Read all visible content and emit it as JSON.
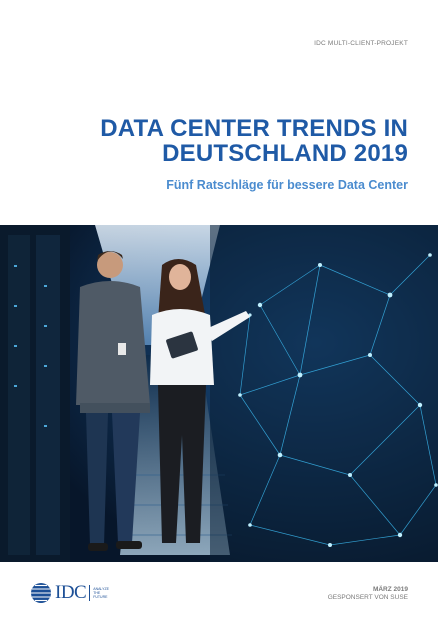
{
  "header": {
    "project_label": "IDC MULTI-CLIENT-PROJEKT"
  },
  "cover": {
    "title_line1": "DATA CENTER TRENDS IN",
    "title_line2": "DEUTSCHLAND 2019",
    "subtitle": "Fünf Ratschläge für bessere Data Center"
  },
  "hero": {
    "icon": "data-center-photo-icon",
    "accent_color": "#3fc6ff"
  },
  "footer": {
    "logo_text": "IDC",
    "logo_tagline": [
      "ANALYZE",
      "THE",
      "FUTURE"
    ],
    "date": "MÄRZ 2019",
    "sponsor": "GESPONSERT VON SUSE"
  },
  "colors": {
    "title": "#1f5aa6",
    "subtitle": "#4b8ccf",
    "meta": "#7a7a7a"
  }
}
